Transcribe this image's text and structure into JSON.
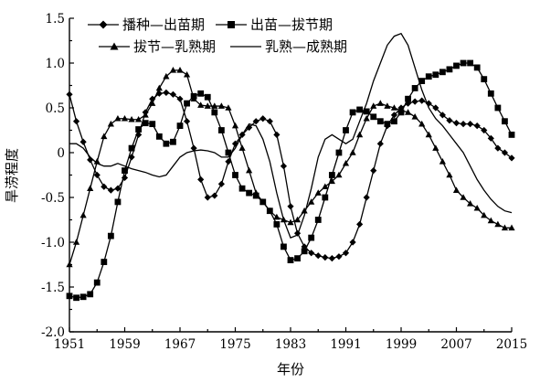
{
  "chart_data": {
    "type": "line",
    "xlabel": "年份",
    "ylabel": "旱涝程度",
    "xlim": [
      1951,
      2015
    ],
    "ylim": [
      -2.0,
      1.5
    ],
    "x_ticks": [
      "1951",
      "1959",
      "1967",
      "1975",
      "1983",
      "1991",
      "1999",
      "2007",
      "2015"
    ],
    "y_ticks": [
      "-2.0",
      "-1.5",
      "-1.0",
      "-0.5",
      "0",
      "0.5",
      "1.0",
      "1.5"
    ],
    "grid": false,
    "legend_position": "top-center",
    "series": [
      {
        "name": "播种—出苗期",
        "marker": "diamond",
        "x": [
          1951,
          1952,
          1953,
          1954,
          1955,
          1956,
          1957,
          1958,
          1959,
          1960,
          1961,
          1962,
          1963,
          1964,
          1965,
          1966,
          1967,
          1968,
          1969,
          1970,
          1971,
          1972,
          1973,
          1974,
          1975,
          1976,
          1977,
          1978,
          1979,
          1980,
          1981,
          1982,
          1983,
          1984,
          1985,
          1986,
          1987,
          1988,
          1989,
          1990,
          1991,
          1992,
          1993,
          1994,
          1995,
          1996,
          1997,
          1998,
          1999,
          2000,
          2001,
          2002,
          2003,
          2004,
          2005,
          2006,
          2007,
          2008,
          2009,
          2010,
          2011,
          2012,
          2013,
          2014,
          2015
        ],
        "values": [
          0.65,
          0.35,
          0.12,
          -0.08,
          -0.25,
          -0.38,
          -0.42,
          -0.4,
          -0.28,
          -0.05,
          0.2,
          0.45,
          0.6,
          0.66,
          0.67,
          0.65,
          0.6,
          0.35,
          0.05,
          -0.3,
          -0.5,
          -0.48,
          -0.35,
          -0.1,
          0.1,
          0.2,
          0.28,
          0.35,
          0.38,
          0.35,
          0.2,
          -0.15,
          -0.6,
          -0.9,
          -1.05,
          -1.12,
          -1.15,
          -1.17,
          -1.18,
          -1.16,
          -1.12,
          -1.0,
          -0.8,
          -0.5,
          -0.2,
          0.1,
          0.3,
          0.42,
          0.5,
          0.55,
          0.57,
          0.58,
          0.55,
          0.5,
          0.42,
          0.36,
          0.33,
          0.32,
          0.32,
          0.3,
          0.25,
          0.16,
          0.05,
          0.0,
          -0.06
        ]
      },
      {
        "name": "出苗—拔节期",
        "marker": "square",
        "x": [
          1951,
          1952,
          1953,
          1954,
          1955,
          1956,
          1957,
          1958,
          1959,
          1960,
          1961,
          1962,
          1963,
          1964,
          1965,
          1966,
          1967,
          1968,
          1969,
          1970,
          1971,
          1972,
          1973,
          1974,
          1975,
          1976,
          1977,
          1978,
          1979,
          1980,
          1981,
          1982,
          1983,
          1984,
          1985,
          1986,
          1987,
          1988,
          1989,
          1990,
          1991,
          1992,
          1993,
          1994,
          1995,
          1996,
          1997,
          1998,
          1999,
          2000,
          2001,
          2002,
          2003,
          2004,
          2005,
          2006,
          2007,
          2008,
          2009,
          2010,
          2011,
          2012,
          2013,
          2014,
          2015
        ],
        "values": [
          -1.6,
          -1.62,
          -1.61,
          -1.58,
          -1.45,
          -1.22,
          -0.93,
          -0.55,
          -0.2,
          0.05,
          0.26,
          0.33,
          0.32,
          0.18,
          0.1,
          0.12,
          0.3,
          0.55,
          0.63,
          0.66,
          0.62,
          0.45,
          0.25,
          0.0,
          -0.25,
          -0.4,
          -0.45,
          -0.48,
          -0.55,
          -0.65,
          -0.8,
          -1.05,
          -1.2,
          -1.18,
          -1.1,
          -0.95,
          -0.75,
          -0.5,
          -0.25,
          0.0,
          0.25,
          0.45,
          0.48,
          0.46,
          0.4,
          0.35,
          0.32,
          0.35,
          0.45,
          0.6,
          0.72,
          0.8,
          0.85,
          0.87,
          0.9,
          0.93,
          0.97,
          1.0,
          1.0,
          0.95,
          0.82,
          0.66,
          0.5,
          0.35,
          0.2
        ]
      },
      {
        "name": "拔节—乳熟期",
        "marker": "triangle",
        "x": [
          1951,
          1952,
          1953,
          1954,
          1955,
          1956,
          1957,
          1958,
          1959,
          1960,
          1961,
          1962,
          1963,
          1964,
          1965,
          1966,
          1967,
          1968,
          1969,
          1970,
          1971,
          1972,
          1973,
          1974,
          1975,
          1976,
          1977,
          1978,
          1979,
          1980,
          1981,
          1982,
          1983,
          1984,
          1985,
          1986,
          1987,
          1988,
          1989,
          1990,
          1991,
          1992,
          1993,
          1994,
          1995,
          1996,
          1997,
          1998,
          1999,
          2000,
          2001,
          2002,
          2003,
          2004,
          2005,
          2006,
          2007,
          2008,
          2009,
          2010,
          2011,
          2012,
          2013,
          2014,
          2015
        ],
        "values": [
          -1.25,
          -1.0,
          -0.7,
          -0.4,
          -0.1,
          0.18,
          0.32,
          0.38,
          0.38,
          0.37,
          0.37,
          0.42,
          0.55,
          0.72,
          0.85,
          0.92,
          0.92,
          0.87,
          0.6,
          0.53,
          0.52,
          0.52,
          0.52,
          0.5,
          0.3,
          0.05,
          -0.2,
          -0.45,
          -0.55,
          -0.65,
          -0.72,
          -0.75,
          -0.78,
          -0.75,
          -0.65,
          -0.55,
          -0.45,
          -0.38,
          -0.32,
          -0.25,
          -0.12,
          0.0,
          0.2,
          0.38,
          0.52,
          0.55,
          0.52,
          0.5,
          0.47,
          0.45,
          0.4,
          0.32,
          0.2,
          0.05,
          -0.1,
          -0.25,
          -0.42,
          -0.5,
          -0.57,
          -0.62,
          -0.7,
          -0.76,
          -0.8,
          -0.84,
          -0.84
        ]
      },
      {
        "name": "乳熟—成熟期",
        "marker": "none",
        "x": [
          1951,
          1952,
          1953,
          1954,
          1955,
          1956,
          1957,
          1958,
          1959,
          1960,
          1961,
          1962,
          1963,
          1964,
          1965,
          1966,
          1967,
          1968,
          1969,
          1970,
          1971,
          1972,
          1973,
          1974,
          1975,
          1976,
          1977,
          1978,
          1979,
          1980,
          1981,
          1982,
          1983,
          1984,
          1985,
          1986,
          1987,
          1988,
          1989,
          1990,
          1991,
          1992,
          1993,
          1994,
          1995,
          1996,
          1997,
          1998,
          1999,
          2000,
          2001,
          2002,
          2003,
          2004,
          2005,
          2006,
          2007,
          2008,
          2009,
          2010,
          2011,
          2012,
          2013,
          2014,
          2015
        ],
        "values": [
          0.1,
          0.1,
          0.05,
          -0.05,
          -0.12,
          -0.15,
          -0.15,
          -0.12,
          -0.15,
          -0.18,
          -0.2,
          -0.22,
          -0.25,
          -0.27,
          -0.25,
          -0.15,
          -0.05,
          0.0,
          0.02,
          0.03,
          0.02,
          0.0,
          -0.05,
          -0.05,
          0.05,
          0.2,
          0.32,
          0.3,
          0.15,
          -0.1,
          -0.45,
          -0.75,
          -0.95,
          -0.92,
          -0.7,
          -0.4,
          -0.05,
          0.15,
          0.2,
          0.15,
          0.1,
          0.15,
          0.35,
          0.55,
          0.8,
          1.0,
          1.2,
          1.3,
          1.33,
          1.2,
          0.95,
          0.7,
          0.5,
          0.38,
          0.3,
          0.2,
          0.1,
          0.0,
          -0.15,
          -0.3,
          -0.42,
          -0.52,
          -0.6,
          -0.65,
          -0.67
        ]
      }
    ]
  }
}
